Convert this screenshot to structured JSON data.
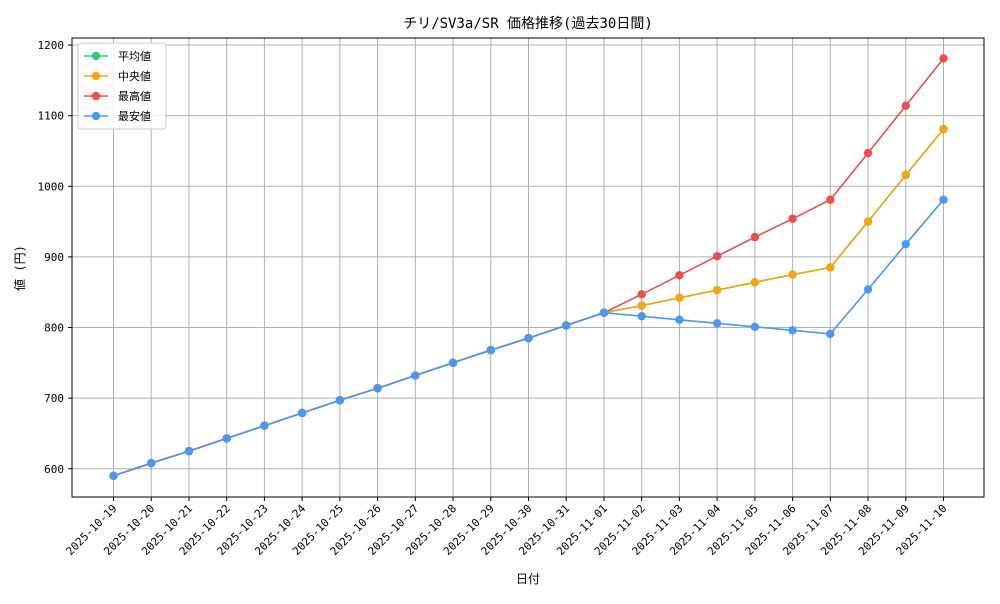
{
  "chart_data": {
    "type": "line",
    "title": "チリ/SV3a/SR 価格推移(過去30日間)",
    "xlabel": "日付",
    "ylabel": "値 (円)",
    "ylim": [
      560,
      1210
    ],
    "yticks": [
      600,
      700,
      800,
      900,
      1000,
      1100,
      1200
    ],
    "grid": true,
    "legend_position": "top-left",
    "categories": [
      "2025-10-19",
      "2025-10-20",
      "2025-10-21",
      "2025-10-22",
      "2025-10-23",
      "2025-10-24",
      "2025-10-25",
      "2025-10-26",
      "2025-10-27",
      "2025-10-28",
      "2025-10-29",
      "2025-10-30",
      "2025-10-31",
      "2025-11-01",
      "2025-11-02",
      "2025-11-03",
      "2025-11-04",
      "2025-11-05",
      "2025-11-06",
      "2025-11-07",
      "2025-11-08",
      "2025-11-09",
      "2025-11-10"
    ],
    "series": [
      {
        "name": "平均値",
        "color": "#2ecc71",
        "values": [
          590,
          608,
          625,
          643,
          661,
          679,
          697,
          714,
          732,
          750,
          768,
          785,
          803,
          821,
          831,
          842,
          853,
          864,
          875,
          885,
          950,
          1016,
          1081
        ]
      },
      {
        "name": "中央値",
        "color": "#f5a612",
        "values": [
          590,
          608,
          625,
          643,
          661,
          679,
          697,
          714,
          732,
          750,
          768,
          785,
          803,
          821,
          831,
          842,
          853,
          864,
          875,
          885,
          950,
          1016,
          1081
        ]
      },
      {
        "name": "最高値",
        "color": "#ef4e4e",
        "values": [
          590,
          608,
          625,
          643,
          661,
          679,
          697,
          714,
          732,
          750,
          768,
          785,
          803,
          821,
          847,
          874,
          901,
          928,
          954,
          981,
          1047,
          1114,
          1181
        ]
      },
      {
        "name": "最安値",
        "color": "#4b98f0",
        "values": [
          590,
          608,
          625,
          643,
          661,
          679,
          697,
          714,
          732,
          750,
          768,
          785,
          803,
          821,
          816,
          811,
          806,
          801,
          796,
          791,
          854,
          918,
          981
        ]
      }
    ]
  }
}
